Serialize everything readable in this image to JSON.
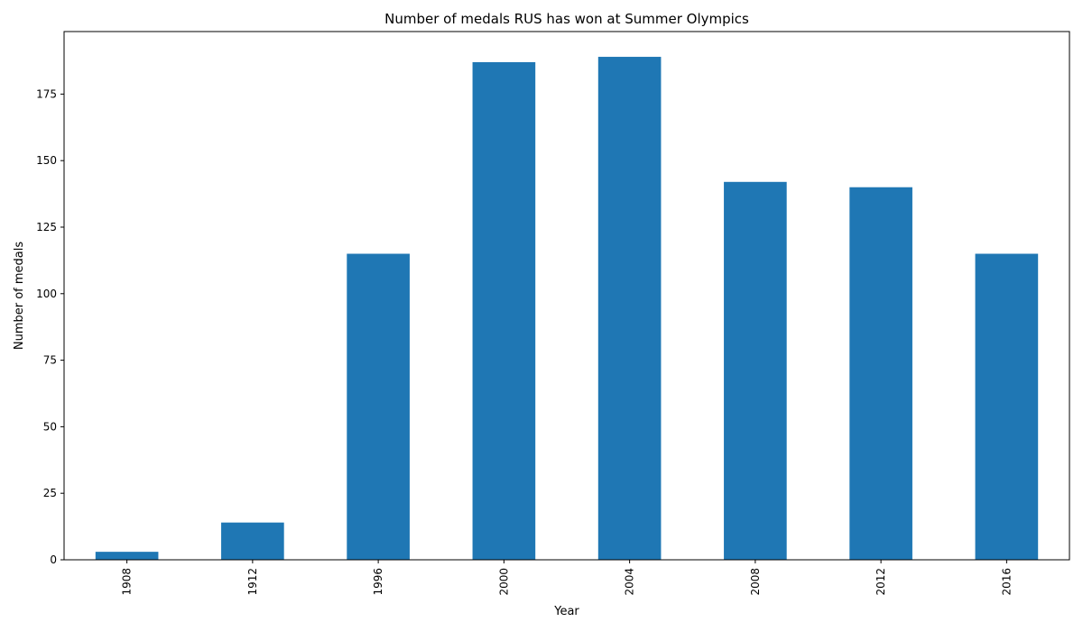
{
  "chart_data": {
    "type": "bar",
    "title": "Number of medals RUS has won at Summer Olympics",
    "xlabel": "Year",
    "ylabel": "Number of medals",
    "categories": [
      "1908",
      "1912",
      "1996",
      "2000",
      "2004",
      "2008",
      "2012",
      "2016"
    ],
    "values": [
      3,
      14,
      115,
      187,
      189,
      142,
      140,
      115
    ],
    "yticks": [
      0,
      25,
      50,
      75,
      100,
      125,
      150,
      175
    ],
    "ylim": [
      0,
      198.5
    ],
    "grid": false,
    "legend": "none",
    "bar_color": "#1f77b4"
  }
}
